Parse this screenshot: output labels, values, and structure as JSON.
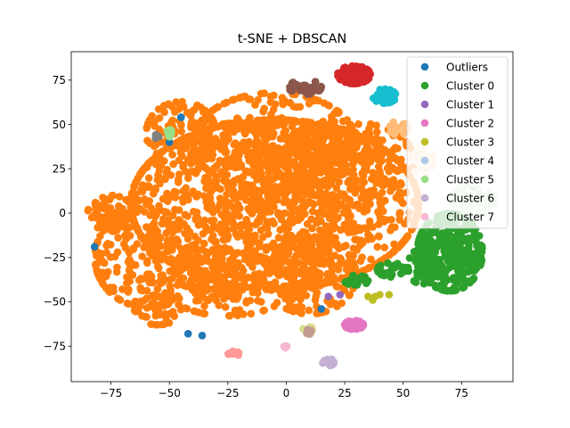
{
  "chart_data": {
    "type": "scatter",
    "title": "t-SNE + DBSCAN",
    "xlabel": "",
    "ylabel": "",
    "xlim": [
      -92,
      97
    ],
    "ylim": [
      -95,
      91
    ],
    "xticks": [
      -75,
      -50,
      -25,
      0,
      25,
      50,
      75
    ],
    "yticks": [
      -75,
      -50,
      -25,
      0,
      25,
      50,
      75
    ],
    "tick_labels_x": [
      "−75",
      "−50",
      "−25",
      "0",
      "25",
      "50",
      "75"
    ],
    "tick_labels_y": [
      "−75",
      "−50",
      "−25",
      "0",
      "25",
      "50",
      "75"
    ],
    "grid": false,
    "legend_position": "top-right",
    "legend": [
      {
        "name": "Outliers",
        "color": "#1f77b4"
      },
      {
        "name": "Cluster 0",
        "color": "#2ca02c"
      },
      {
        "name": "Cluster 1",
        "color": "#9467bd"
      },
      {
        "name": "Cluster 2",
        "color": "#e377c2"
      },
      {
        "name": "Cluster 3",
        "color": "#bcbd22"
      },
      {
        "name": "Cluster 4",
        "color": "#aec7e8"
      },
      {
        "name": "Cluster 5",
        "color": "#98df8a"
      },
      {
        "name": "Cluster 6",
        "color": "#c5b0d5"
      },
      {
        "name": "Cluster 7",
        "color": "#f7b6d2"
      }
    ],
    "series": [
      {
        "color": "#ff7f0e",
        "blobs": [
          {
            "cx": -5,
            "cy": 5,
            "rx": 62,
            "ry": 48,
            "n": 1400
          },
          {
            "cx": -5,
            "cy": 40,
            "rx": 35,
            "ry": 28,
            "n": 350
          },
          {
            "cx": -45,
            "cy": 45,
            "rx": 15,
            "ry": 18,
            "n": 120
          },
          {
            "cx": 25,
            "cy": 30,
            "rx": 30,
            "ry": 22,
            "n": 250
          },
          {
            "cx": -60,
            "cy": -25,
            "rx": 22,
            "ry": 28,
            "n": 220
          },
          {
            "cx": -25,
            "cy": -40,
            "rx": 28,
            "ry": 18,
            "n": 200
          },
          {
            "cx": 10,
            "cy": -35,
            "rx": 20,
            "ry": 22,
            "n": 180
          },
          {
            "cx": -75,
            "cy": 0,
            "rx": 10,
            "ry": 10,
            "n": 60
          },
          {
            "cx": -55,
            "cy": -55,
            "rx": 10,
            "ry": 8,
            "n": 50
          }
        ]
      },
      {
        "name": "Outliers",
        "color": "#1f77b4",
        "points": [
          [
            -82,
            -19
          ],
          [
            -45,
            54
          ],
          [
            -42,
            -68
          ],
          [
            -36,
            -69
          ],
          [
            15,
            -54
          ],
          [
            80,
            15
          ],
          [
            -50,
            40
          ]
        ]
      },
      {
        "name": "Cluster 0",
        "color": "#2ca02c",
        "blobs": [
          {
            "cx": 70,
            "cy": -22,
            "rx": 14,
            "ry": 22,
            "n": 320
          },
          {
            "cx": 58,
            "cy": -30,
            "rx": 6,
            "ry": 10,
            "n": 50
          },
          {
            "cx": 45,
            "cy": -32,
            "rx": 6,
            "ry": 4,
            "n": 25
          },
          {
            "cx": 30,
            "cy": -38,
            "rx": 5,
            "ry": 3,
            "n": 20
          }
        ]
      },
      {
        "name": "Cluster 1",
        "color": "#9467bd",
        "points": [
          [
            18,
            -47
          ],
          [
            23,
            -46
          ]
        ]
      },
      {
        "name": "Cluster 2",
        "color": "#e377c2",
        "blobs": [
          {
            "cx": 29,
            "cy": -63,
            "rx": 4,
            "ry": 2.5,
            "n": 40
          }
        ]
      },
      {
        "name": "Cluster 3",
        "color": "#bcbd22",
        "points": [
          [
            35,
            -47
          ],
          [
            38,
            -47
          ],
          [
            37,
            -49
          ],
          [
            40,
            -46
          ],
          [
            44,
            -46
          ]
        ]
      },
      {
        "name": "Cluster 4",
        "color": "#aec7e8",
        "blobs": []
      },
      {
        "name": "Cluster 5",
        "color": "#98df8a",
        "blobs": [
          {
            "cx": -50,
            "cy": 45,
            "rx": 1,
            "ry": 3,
            "n": 8
          }
        ]
      },
      {
        "name": "Cluster 6",
        "color": "#c5b0d5",
        "blobs": [
          {
            "cx": 18,
            "cy": -84,
            "rx": 2.5,
            "ry": 2,
            "n": 15
          }
        ]
      },
      {
        "name": "Cluster 7",
        "color": "#f7b6d2",
        "blobs": [
          {
            "cx": 0,
            "cy": -75,
            "rx": 1.5,
            "ry": 1,
            "n": 5
          }
        ]
      },
      {
        "color": "#d62728",
        "blobs": [
          {
            "cx": 29,
            "cy": 78,
            "rx": 7,
            "ry": 5,
            "n": 90
          }
        ]
      },
      {
        "color": "#17becf",
        "blobs": [
          {
            "cx": 42,
            "cy": 66,
            "rx": 5,
            "ry": 4,
            "n": 55
          }
        ]
      },
      {
        "color": "#8c564b",
        "blobs": [
          {
            "cx": 8,
            "cy": 71,
            "rx": 7,
            "ry": 4,
            "n": 40
          }
        ]
      },
      {
        "color": "#7f7f7f",
        "blobs": [
          {
            "cx": -55,
            "cy": 43,
            "rx": 1,
            "ry": 2,
            "n": 6
          }
        ]
      },
      {
        "color": "#ff9896",
        "blobs": [
          {
            "cx": -22,
            "cy": -79,
            "rx": 3,
            "ry": 1.2,
            "n": 14
          }
        ]
      },
      {
        "color": "#dbdb8d",
        "blobs": [
          {
            "cx": 10,
            "cy": -66,
            "rx": 3,
            "ry": 2,
            "n": 14
          }
        ]
      },
      {
        "color": "#c49c94",
        "blobs": [
          {
            "cx": 10,
            "cy": -67,
            "rx": 2,
            "ry": 1.5,
            "n": 8
          }
        ]
      },
      {
        "color": "#ffbb78",
        "blobs": [
          {
            "cx": 48,
            "cy": 48,
            "rx": 4,
            "ry": 4,
            "n": 15
          }
        ]
      },
      {
        "color": "#f7d9c4",
        "blobs": [
          {
            "cx": 58,
            "cy": 30,
            "rx": 5,
            "ry": 8,
            "n": 30
          }
        ]
      },
      {
        "color": "#c7e9c0",
        "blobs": [
          {
            "cx": 80,
            "cy": 8,
            "rx": 9,
            "ry": 8,
            "n": 55
          }
        ]
      }
    ]
  }
}
